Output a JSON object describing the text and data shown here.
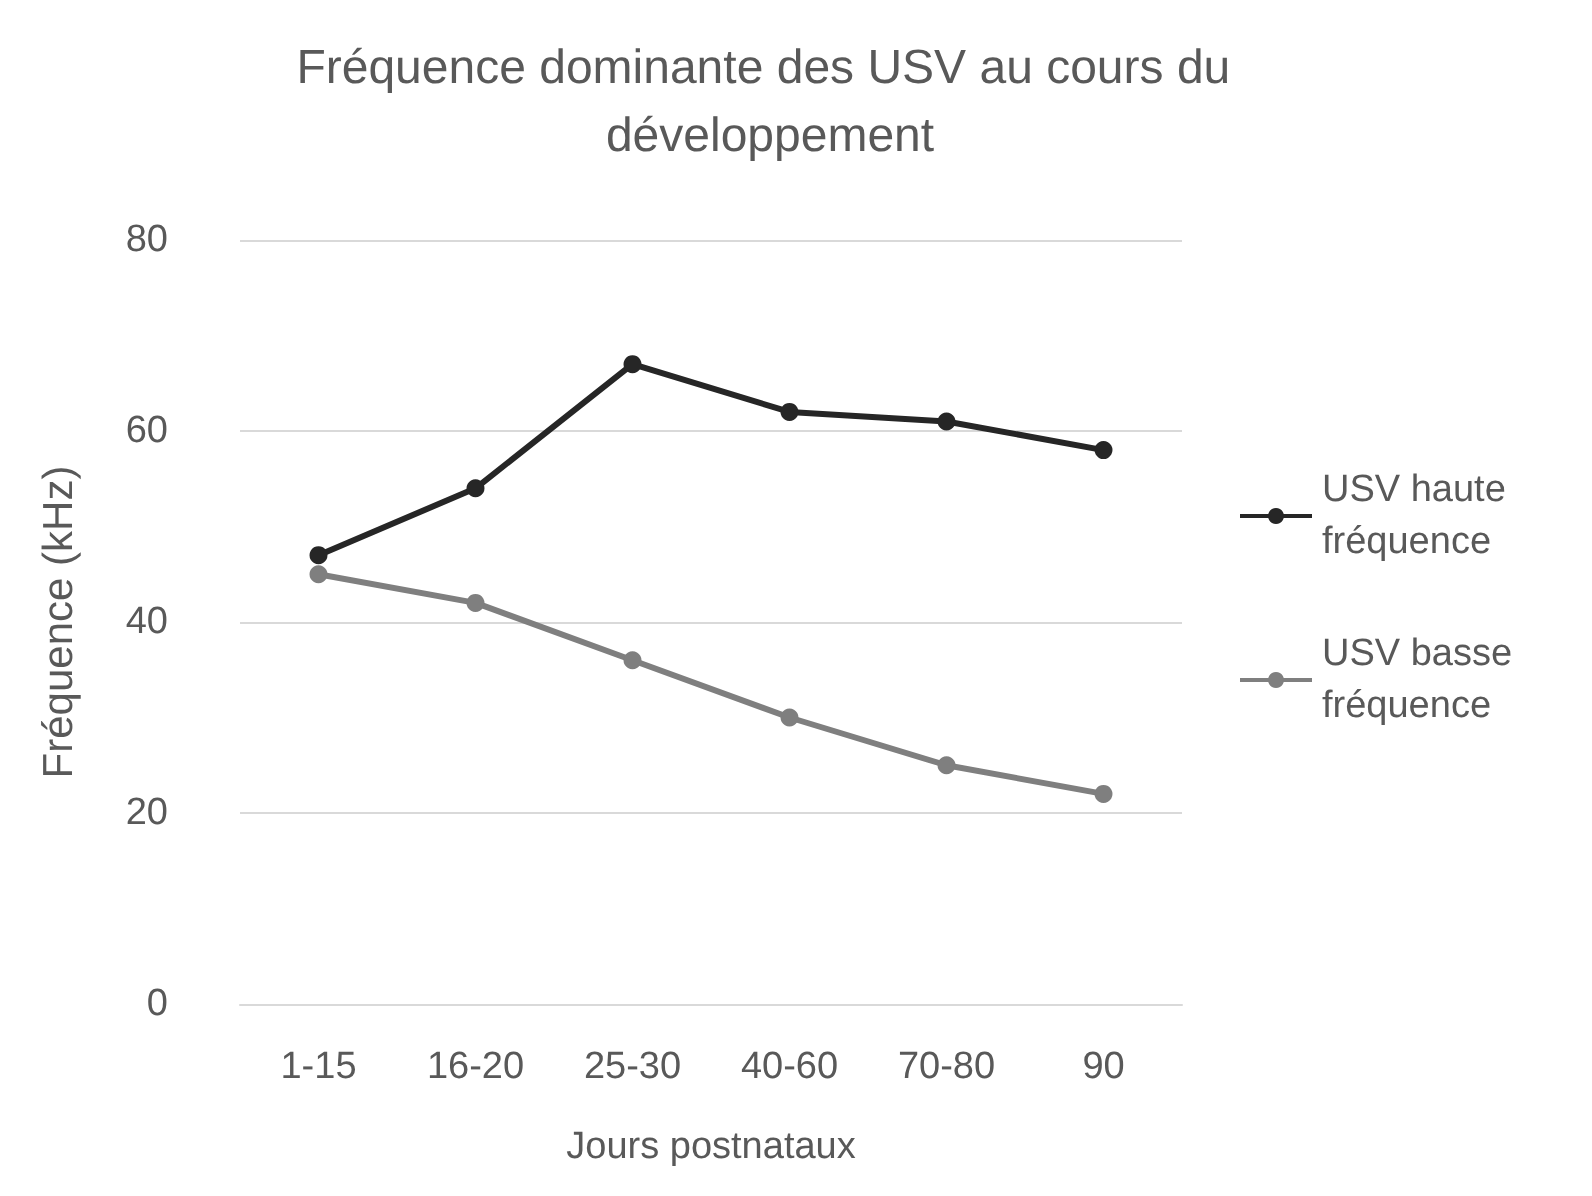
{
  "chart_data": {
    "type": "line",
    "title": "Fréquence dominante des USV au cours du développement",
    "xlabel": "Jours postnataux",
    "ylabel": "Fréquence (kHz)",
    "categories": [
      "1-15",
      "16-20",
      "25-30",
      "40-60",
      "70-80",
      "90"
    ],
    "series": [
      {
        "name": "USV haute fréquence",
        "color": "#262626",
        "values": [
          47,
          54,
          67,
          62,
          61,
          58
        ]
      },
      {
        "name": "USV basse fréquence",
        "color": "#7f7f7f",
        "values": [
          45,
          42,
          36,
          30,
          25,
          22
        ]
      }
    ],
    "ylim": [
      0,
      80
    ],
    "yticks": [
      0,
      20,
      40,
      60,
      80
    ],
    "grid": "y",
    "legend": "right",
    "marker": "circle",
    "line_style": "solid"
  }
}
